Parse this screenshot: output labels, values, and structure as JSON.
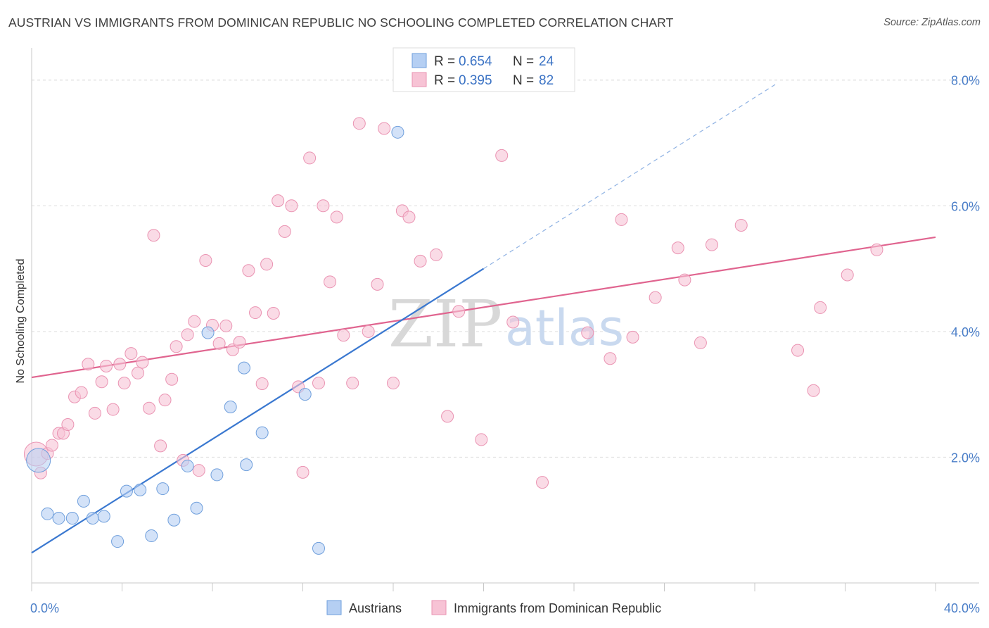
{
  "header": {
    "title": "AUSTRIAN VS IMMIGRANTS FROM DOMINICAN REPUBLIC NO SCHOOLING COMPLETED CORRELATION CHART",
    "source": "Source: ZipAtlas.com"
  },
  "watermark": {
    "zip": "ZIP",
    "atlas": "atlas"
  },
  "stats_box": {
    "rows": [
      {
        "r_label": "R =",
        "r_value": "0.654",
        "n_label": "N =",
        "n_value": "24"
      },
      {
        "r_label": "R =",
        "r_value": "0.395",
        "n_label": "N =",
        "n_value": "82"
      }
    ]
  },
  "chart_data": {
    "type": "scatter",
    "ylabel": "No Schooling Completed",
    "xlim": [
      0,
      40
    ],
    "ylim": [
      0,
      8.4
    ],
    "x_tick_labels": [
      "0.0%",
      "40.0%"
    ],
    "y_ticks": [
      2,
      4,
      6,
      8
    ],
    "y_tick_labels": [
      "2.0%",
      "4.0%",
      "6.0%",
      "8.0%"
    ],
    "grid": true,
    "legend_position": "bottom",
    "series": [
      {
        "name": "Austrians",
        "fill": "#b5cff3",
        "stroke": "#6f9fdc",
        "line_color": "#3a78d0",
        "trend": {
          "x0": 0,
          "y0": 0.48,
          "x1": 20,
          "y1": 5.0,
          "dash_to_x": 33,
          "dash_to_y": 7.95
        },
        "points": [
          [
            0.3,
            1.95,
            "large"
          ],
          [
            0.7,
            1.1
          ],
          [
            1.2,
            1.03
          ],
          [
            1.8,
            1.03
          ],
          [
            2.3,
            1.3
          ],
          [
            2.7,
            1.03
          ],
          [
            3.2,
            1.06
          ],
          [
            3.8,
            0.66
          ],
          [
            4.2,
            1.46
          ],
          [
            4.8,
            1.48
          ],
          [
            5.3,
            0.75
          ],
          [
            5.8,
            1.5
          ],
          [
            6.3,
            1.0
          ],
          [
            6.9,
            1.86
          ],
          [
            7.3,
            1.19
          ],
          [
            7.8,
            3.98
          ],
          [
            8.2,
            1.72
          ],
          [
            8.8,
            2.8
          ],
          [
            9.4,
            3.42
          ],
          [
            9.5,
            1.88
          ],
          [
            10.2,
            2.39
          ],
          [
            12.1,
            3.0
          ],
          [
            12.7,
            0.55
          ],
          [
            16.2,
            7.17
          ]
        ]
      },
      {
        "name": "Immigrants from Dominican Republic",
        "fill": "#f7c3d5",
        "stroke": "#ea93b2",
        "line_color": "#e0648f",
        "trend": {
          "x0": 0,
          "y0": 3.27,
          "x1": 40,
          "y1": 5.5
        },
        "points": [
          [
            0.2,
            2.05,
            "large"
          ],
          [
            0.4,
            1.75
          ],
          [
            0.7,
            2.06
          ],
          [
            0.9,
            2.19
          ],
          [
            1.2,
            2.38
          ],
          [
            1.4,
            2.38
          ],
          [
            1.6,
            2.52
          ],
          [
            1.9,
            2.96
          ],
          [
            2.2,
            3.03
          ],
          [
            2.5,
            3.48
          ],
          [
            2.8,
            2.7
          ],
          [
            3.1,
            3.2
          ],
          [
            3.3,
            3.45
          ],
          [
            3.6,
            2.76
          ],
          [
            3.9,
            3.48
          ],
          [
            4.1,
            3.18
          ],
          [
            4.4,
            3.65
          ],
          [
            4.7,
            3.34
          ],
          [
            4.9,
            3.51
          ],
          [
            5.2,
            2.78
          ],
          [
            5.4,
            5.53
          ],
          [
            5.7,
            2.18
          ],
          [
            5.9,
            2.91
          ],
          [
            6.2,
            3.24
          ],
          [
            6.4,
            3.76
          ],
          [
            6.7,
            1.95
          ],
          [
            6.9,
            3.95
          ],
          [
            7.2,
            4.16
          ],
          [
            7.4,
            1.79
          ],
          [
            7.7,
            5.13
          ],
          [
            8.0,
            4.1
          ],
          [
            8.3,
            3.81
          ],
          [
            8.6,
            4.09
          ],
          [
            8.9,
            3.71
          ],
          [
            9.2,
            3.83
          ],
          [
            9.6,
            4.97
          ],
          [
            9.9,
            4.3
          ],
          [
            10.2,
            3.17
          ],
          [
            10.4,
            5.07
          ],
          [
            10.7,
            4.29
          ],
          [
            10.9,
            6.08
          ],
          [
            11.2,
            5.59
          ],
          [
            11.5,
            6.0
          ],
          [
            11.8,
            3.12
          ],
          [
            12.0,
            1.76
          ],
          [
            12.3,
            6.76
          ],
          [
            12.7,
            3.18
          ],
          [
            12.9,
            6.0
          ],
          [
            13.2,
            4.79
          ],
          [
            13.5,
            5.82
          ],
          [
            13.8,
            3.94
          ],
          [
            14.2,
            3.18
          ],
          [
            14.5,
            7.31
          ],
          [
            14.9,
            4.0
          ],
          [
            15.3,
            4.75
          ],
          [
            15.6,
            7.23
          ],
          [
            16.0,
            3.18
          ],
          [
            16.4,
            5.92
          ],
          [
            16.7,
            5.82
          ],
          [
            17.2,
            5.12
          ],
          [
            17.9,
            5.22
          ],
          [
            18.4,
            2.65
          ],
          [
            18.9,
            4.32
          ],
          [
            19.9,
            2.28
          ],
          [
            20.8,
            6.8
          ],
          [
            21.3,
            4.15
          ],
          [
            22.6,
            1.6
          ],
          [
            24.6,
            3.98
          ],
          [
            25.6,
            3.57
          ],
          [
            26.1,
            5.78
          ],
          [
            26.6,
            3.91
          ],
          [
            27.6,
            4.54
          ],
          [
            28.6,
            5.33
          ],
          [
            28.9,
            4.82
          ],
          [
            29.6,
            3.82
          ],
          [
            30.1,
            5.38
          ],
          [
            31.4,
            5.69
          ],
          [
            33.9,
            3.7
          ],
          [
            34.6,
            3.06
          ],
          [
            34.9,
            4.38
          ],
          [
            36.1,
            4.9
          ],
          [
            37.4,
            5.3
          ]
        ]
      }
    ]
  }
}
